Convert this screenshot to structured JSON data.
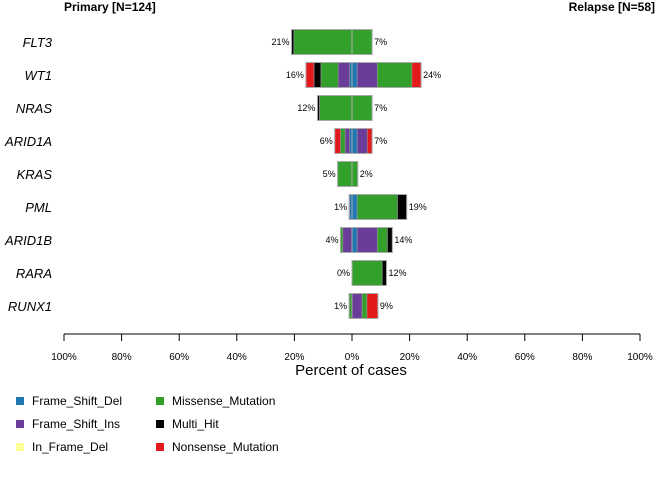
{
  "header": {
    "left_title": "Primary [N=124]",
    "right_title": "Relapse [N=58]"
  },
  "chart_data": {
    "type": "bar",
    "subtype": "back-to-back stacked horizontal bar",
    "categories": [
      "FLT3",
      "WT1",
      "NRAS",
      "ARID1A",
      "KRAS",
      "PML",
      "ARID1B",
      "RARA",
      "RUNX1"
    ],
    "xlabel": "Percent of cases",
    "xlim": [
      -100,
      100
    ],
    "x_ticks": [
      "100%",
      "80%",
      "60%",
      "40%",
      "20%",
      "0%",
      "20%",
      "40%",
      "60%",
      "80%",
      "100%"
    ],
    "groups": {
      "primary": {
        "totals": [
          21,
          16,
          12,
          6,
          5,
          1,
          4,
          0,
          1
        ],
        "labels": [
          "21%",
          "16%",
          "12%",
          "6%",
          "5%",
          "1%",
          "4%",
          "0%",
          "1%"
        ]
      },
      "relapse": {
        "totals": [
          7,
          24,
          7,
          7,
          2,
          19,
          14,
          12,
          9
        ],
        "labels": [
          "7%",
          "24%",
          "7%",
          "7%",
          "2%",
          "19%",
          "14%",
          "12%",
          "9%"
        ]
      }
    },
    "series": [
      {
        "name": "Frame_Shift_Del",
        "color": "#1F78B4",
        "primary": [
          0,
          0.8,
          0,
          0.8,
          0,
          0.8,
          0,
          0,
          0
        ],
        "relapse": [
          0,
          1.8,
          0,
          1.8,
          0,
          1.8,
          1.8,
          0,
          0
        ]
      },
      {
        "name": "Frame_Shift_Ins",
        "color": "#6A3D9A",
        "primary": [
          0,
          4,
          0,
          1.6,
          0,
          0,
          3.2,
          0,
          0
        ],
        "relapse": [
          0,
          7,
          0,
          3.5,
          0,
          0,
          7,
          0,
          3.5
        ]
      },
      {
        "name": "In_Frame_Del",
        "color": "#FFFF99",
        "primary": [
          0,
          0,
          0,
          0,
          0,
          0,
          0,
          0,
          0
        ],
        "relapse": [
          0,
          0,
          0,
          0,
          0,
          0,
          0,
          0,
          0
        ]
      },
      {
        "name": "Missense_Mutation",
        "color": "#33A02C",
        "primary": [
          20.2,
          6,
          11.3,
          1.6,
          5,
          0.2,
          0.8,
          0,
          1
        ],
        "relapse": [
          7,
          12,
          7,
          0,
          2,
          14,
          3.5,
          10.5,
          1.7
        ]
      },
      {
        "name": "Multi_Hit",
        "color": "#000000",
        "primary": [
          0.8,
          2.4,
          0.7,
          0,
          0,
          0,
          0,
          0,
          0
        ],
        "relapse": [
          0,
          0,
          0,
          0,
          0,
          3.2,
          1.7,
          1.5,
          0
        ]
      },
      {
        "name": "Nonsense_Mutation",
        "color": "#E31A1C",
        "primary": [
          0,
          2.8,
          0,
          2,
          0,
          0,
          0,
          0,
          0
        ],
        "relapse": [
          0,
          3.2,
          0,
          1.7,
          0,
          0,
          0,
          0,
          3.8
        ]
      }
    ],
    "legend_position": "bottom-left"
  }
}
